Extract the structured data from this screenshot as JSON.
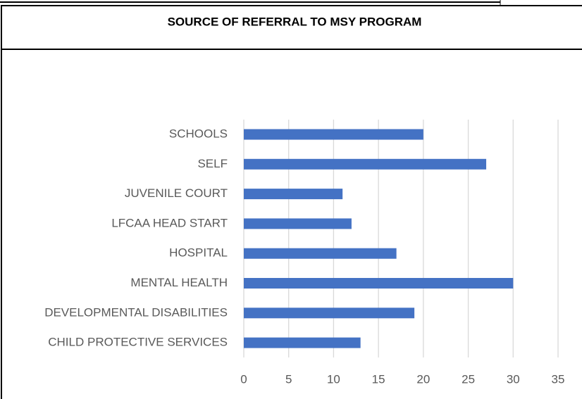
{
  "chart_data": {
    "type": "bar",
    "orientation": "horizontal",
    "title": "SOURCE OF REFERRAL TO MSY PROGRAM",
    "categories": [
      "SCHOOLS",
      "SELF",
      "JUVENILE COURT",
      "LFCAA HEAD START",
      "HOSPITAL",
      "MENTAL HEALTH",
      "DEVELOPMENTAL DISABILITIES",
      "CHILD PROTECTIVE SERVICES"
    ],
    "values": [
      20,
      27,
      11,
      12,
      17,
      30,
      19,
      13
    ],
    "color": "#4472c4",
    "xlim": [
      0,
      35
    ],
    "xticks": [
      0,
      5,
      10,
      15,
      20,
      25,
      30,
      35
    ],
    "grid": true
  }
}
